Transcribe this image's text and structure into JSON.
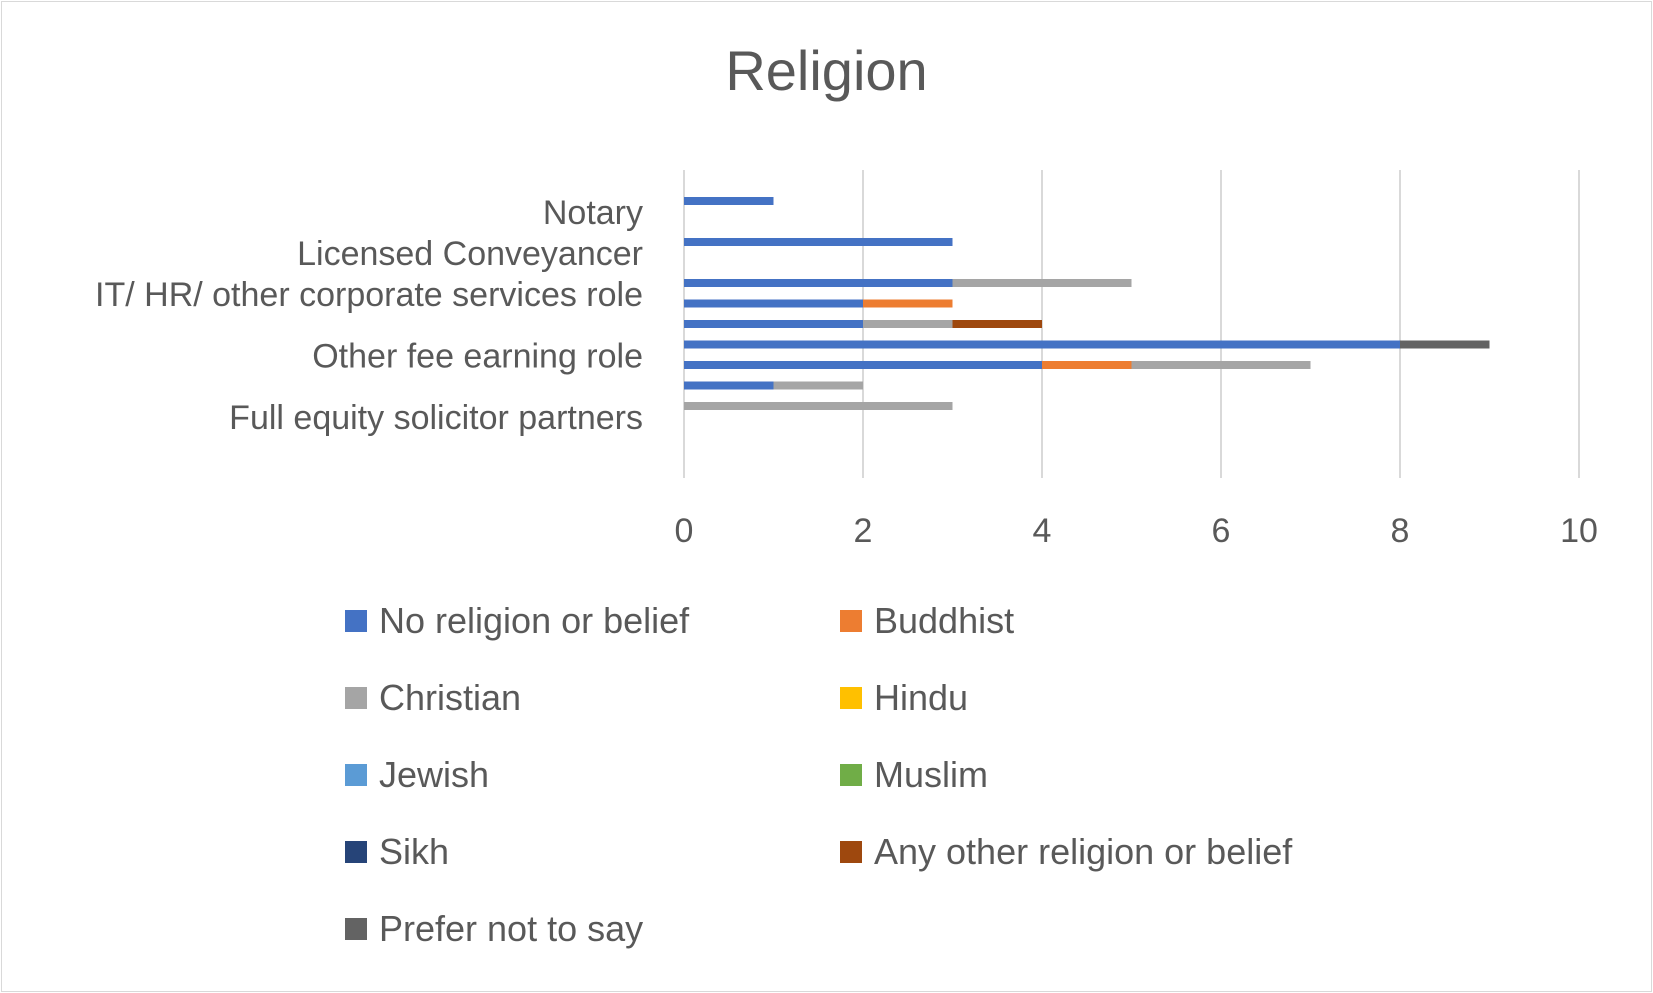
{
  "chart_data": {
    "type": "bar",
    "orientation": "horizontal",
    "stacked": true,
    "title": "Religion",
    "xlim": [
      0,
      10
    ],
    "x_ticks": [
      "0",
      "2",
      "4",
      "6",
      "8",
      "10"
    ],
    "grid": true,
    "legend_position": "bottom",
    "category_labels": [
      "Notary",
      "Licensed Conveyancer",
      "IT/ HR/ other corporate services role",
      "Other fee earning role",
      "Full equity solicitor partners"
    ],
    "categories": [
      "Notary",
      "",
      "Licensed Conveyancer",
      "",
      "IT/ HR/ other corporate services role",
      "",
      "",
      "Other fee earning role",
      "",
      "",
      "Full equity solicitor partners"
    ],
    "series": [
      {
        "name": "No religion or belief",
        "color": "#4472c4",
        "values": [
          1,
          0,
          3,
          0,
          3,
          2,
          2,
          8,
          4,
          1,
          0
        ]
      },
      {
        "name": "Buddhist",
        "color": "#ed7d31",
        "values": [
          0,
          0,
          0,
          0,
          0,
          1,
          0,
          0,
          1,
          0,
          0
        ]
      },
      {
        "name": "Christian",
        "color": "#a5a5a5",
        "values": [
          0,
          0,
          0,
          0,
          2,
          0,
          1,
          0,
          2,
          1,
          3
        ]
      },
      {
        "name": "Hindu",
        "color": "#ffc000",
        "values": [
          0,
          0,
          0,
          0,
          0,
          0,
          0,
          0,
          0,
          0,
          0
        ]
      },
      {
        "name": "Jewish",
        "color": "#5b9bd5",
        "values": [
          0,
          0,
          0,
          0,
          0,
          0,
          0,
          0,
          0,
          0,
          0
        ]
      },
      {
        "name": "Muslim",
        "color": "#70ad47",
        "values": [
          0,
          0,
          0,
          0,
          0,
          0,
          0,
          0,
          0,
          0,
          0
        ]
      },
      {
        "name": "Sikh",
        "color": "#264478",
        "values": [
          0,
          0,
          0,
          0,
          0,
          0,
          0,
          0,
          0,
          0,
          0
        ]
      },
      {
        "name": "Any other religion or belief",
        "color": "#9e480e",
        "values": [
          0,
          0,
          0,
          0,
          0,
          0,
          1,
          0,
          0,
          0,
          0
        ]
      },
      {
        "name": "Prefer not to say",
        "color": "#636363",
        "values": [
          0,
          0,
          0,
          0,
          0,
          0,
          0,
          1,
          0,
          0,
          0
        ]
      }
    ]
  }
}
